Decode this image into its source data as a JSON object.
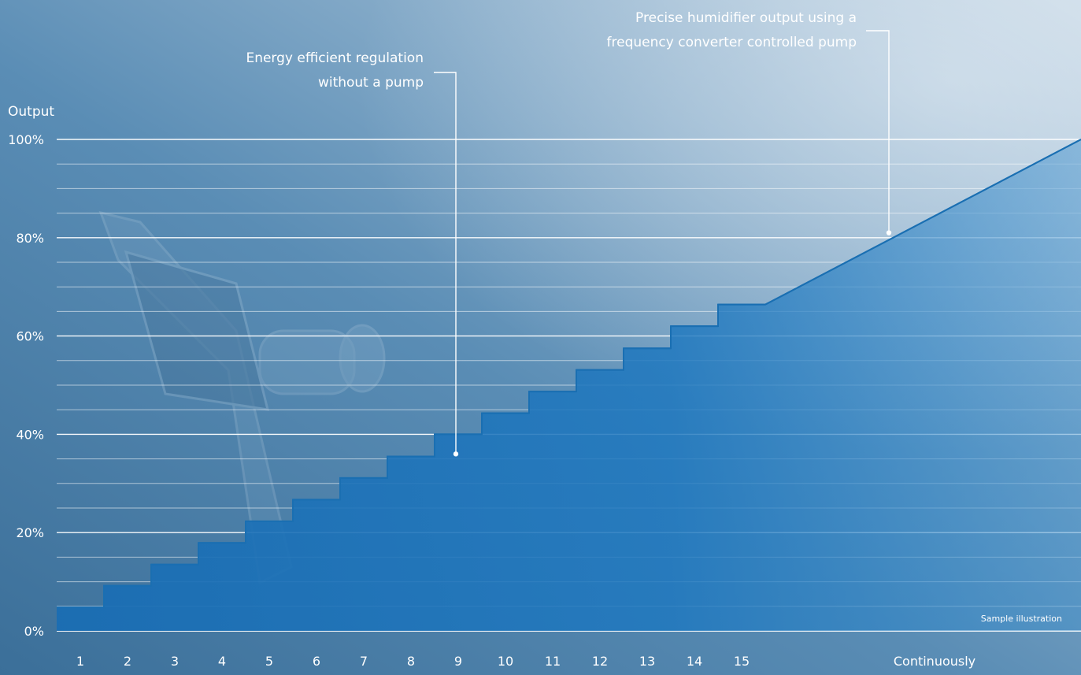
{
  "chart_data": {
    "type": "area",
    "ylabel": "Output",
    "ylim": [
      0,
      100
    ],
    "ytick_labels": [
      "0%",
      "20%",
      "40%",
      "60%",
      "80%",
      "100%"
    ],
    "ytick_values": [
      0,
      20,
      40,
      60,
      80,
      100
    ],
    "minor_grid_step": 5,
    "grid": true,
    "stepped_series": {
      "categories": [
        "1",
        "2",
        "3",
        "4",
        "5",
        "6",
        "7",
        "8",
        "9",
        "10",
        "11",
        "12",
        "13",
        "14",
        "15"
      ],
      "values": [
        4.8,
        9.2,
        13.5,
        17.9,
        22.3,
        26.7,
        31.1,
        35.5,
        40.0,
        44.3,
        48.7,
        53.1,
        57.5,
        62.0,
        66.4
      ]
    },
    "continuous_series": {
      "label": "Continuously",
      "start_value": 66.4,
      "end_value": 100
    },
    "annotations": [
      {
        "text_lines": [
          "Energy efficient regulation",
          "without a pump"
        ],
        "target_category": "9",
        "target_value": 36
      },
      {
        "text_lines": [
          "Precise humidifier output using a",
          "frequency converter controlled pump"
        ],
        "target_value": 81
      }
    ],
    "note": "Sample illustration",
    "colors": {
      "fill": "#1a74bd",
      "line": "#1a6fb2",
      "grid": "#ffffff",
      "text": "#ffffff",
      "background": "#4a7fa8"
    }
  }
}
